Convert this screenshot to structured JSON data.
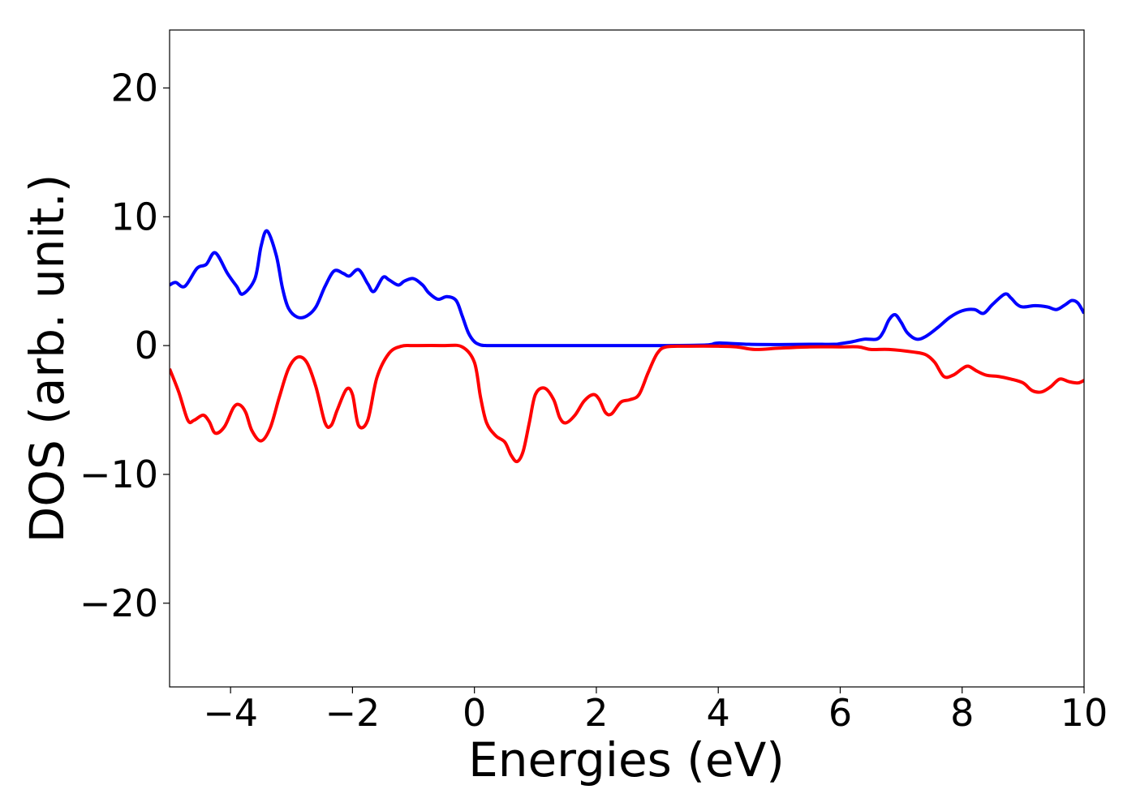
{
  "chart_data": {
    "type": "line",
    "title": "",
    "xlabel": "Energies (eV)",
    "ylabel": "DOS (arb. unit.)",
    "xlim": [
      -5,
      10
    ],
    "ylim": [
      -26.5,
      24.5
    ],
    "xticks": [
      -4,
      -2,
      0,
      2,
      4,
      6,
      8,
      10
    ],
    "xtick_labels": [
      "−4",
      "−2",
      "0",
      "2",
      "4",
      "6",
      "8",
      "10"
    ],
    "yticks": [
      -20,
      -10,
      0,
      10,
      20
    ],
    "ytick_labels": [
      "−20",
      "−10",
      "0",
      "10",
      "20"
    ],
    "grid": false,
    "legend": "none",
    "series": [
      {
        "color": "#0000ff",
        "x": [
          -5.0,
          -4.9,
          -4.75,
          -4.55,
          -4.4,
          -4.25,
          -4.05,
          -3.9,
          -3.8,
          -3.6,
          -3.5,
          -3.4,
          -3.25,
          -3.15,
          -3.05,
          -2.9,
          -2.75,
          -2.6,
          -2.45,
          -2.3,
          -2.15,
          -2.05,
          -1.9,
          -1.75,
          -1.65,
          -1.5,
          -1.4,
          -1.25,
          -1.15,
          -1.0,
          -0.85,
          -0.75,
          -0.6,
          -0.45,
          -0.3,
          -0.2,
          -0.1,
          0.0,
          0.1,
          0.2,
          0.3,
          0.5,
          1.0,
          2.0,
          3.0,
          3.8,
          4.0,
          4.5,
          5.0,
          5.5,
          5.9,
          6.0,
          6.2,
          6.4,
          6.6,
          6.7,
          6.8,
          6.9,
          7.0,
          7.1,
          7.25,
          7.4,
          7.6,
          7.8,
          8.0,
          8.2,
          8.35,
          8.5,
          8.7,
          8.8,
          8.9,
          9.0,
          9.2,
          9.4,
          9.55,
          9.7,
          9.8,
          9.9,
          10.0
        ],
        "y": [
          4.7,
          4.9,
          4.6,
          6.0,
          6.3,
          7.2,
          5.6,
          4.6,
          4.0,
          5.2,
          7.7,
          8.9,
          7.0,
          4.5,
          2.9,
          2.2,
          2.3,
          3.0,
          4.6,
          5.8,
          5.6,
          5.4,
          5.9,
          4.8,
          4.2,
          5.3,
          5.1,
          4.7,
          5.0,
          5.2,
          4.7,
          4.1,
          3.6,
          3.8,
          3.5,
          2.3,
          1.0,
          0.3,
          0.05,
          0.0,
          0.0,
          0.0,
          0.0,
          0.0,
          0.0,
          0.05,
          0.2,
          0.1,
          0.08,
          0.1,
          0.1,
          0.15,
          0.3,
          0.5,
          0.5,
          1.0,
          2.0,
          2.4,
          1.8,
          1.0,
          0.5,
          0.7,
          1.4,
          2.2,
          2.7,
          2.8,
          2.5,
          3.2,
          4.0,
          3.7,
          3.2,
          3.0,
          3.1,
          3.0,
          2.8,
          3.2,
          3.5,
          3.3,
          2.5
        ]
      },
      {
        "color": "#ff0000",
        "x": [
          -5.0,
          -4.85,
          -4.7,
          -4.6,
          -4.45,
          -4.35,
          -4.25,
          -4.1,
          -3.95,
          -3.85,
          -3.75,
          -3.65,
          -3.5,
          -3.35,
          -3.2,
          -3.05,
          -2.9,
          -2.75,
          -2.6,
          -2.45,
          -2.35,
          -2.25,
          -2.1,
          -2.0,
          -1.9,
          -1.75,
          -1.6,
          -1.4,
          -1.2,
          -1.0,
          -0.5,
          -0.2,
          0.0,
          0.1,
          0.2,
          0.35,
          0.5,
          0.6,
          0.7,
          0.8,
          0.9,
          1.0,
          1.15,
          1.3,
          1.4,
          1.5,
          1.65,
          1.8,
          1.95,
          2.05,
          2.15,
          2.25,
          2.4,
          2.55,
          2.7,
          2.85,
          3.0,
          3.15,
          3.5,
          4.0,
          4.3,
          4.6,
          5.0,
          5.5,
          6.0,
          6.3,
          6.5,
          6.8,
          7.2,
          7.4,
          7.55,
          7.7,
          7.85,
          8.0,
          8.1,
          8.25,
          8.4,
          8.6,
          8.8,
          9.0,
          9.15,
          9.3,
          9.45,
          9.6,
          9.75,
          9.9,
          10.0
        ],
        "y": [
          -1.8,
          -3.6,
          -5.8,
          -5.8,
          -5.4,
          -5.9,
          -6.8,
          -6.3,
          -4.8,
          -4.6,
          -5.2,
          -6.6,
          -7.4,
          -6.4,
          -4.0,
          -1.8,
          -0.9,
          -1.3,
          -3.2,
          -6.0,
          -6.2,
          -5.0,
          -3.4,
          -3.8,
          -6.2,
          -5.8,
          -2.5,
          -0.6,
          -0.05,
          0.0,
          0.0,
          -0.1,
          -1.3,
          -4.0,
          -6.0,
          -7.0,
          -7.5,
          -8.5,
          -9.0,
          -8.2,
          -6.0,
          -3.8,
          -3.3,
          -4.2,
          -5.6,
          -6.0,
          -5.4,
          -4.3,
          -3.8,
          -4.2,
          -5.2,
          -5.3,
          -4.4,
          -4.2,
          -3.8,
          -2.1,
          -0.6,
          -0.1,
          -0.05,
          -0.05,
          -0.1,
          -0.3,
          -0.2,
          -0.1,
          -0.1,
          -0.1,
          -0.3,
          -0.3,
          -0.5,
          -0.7,
          -1.3,
          -2.4,
          -2.3,
          -1.8,
          -1.6,
          -2.0,
          -2.3,
          -2.4,
          -2.6,
          -2.9,
          -3.5,
          -3.6,
          -3.2,
          -2.6,
          -2.8,
          -2.9,
          -2.7
        ]
      }
    ]
  }
}
